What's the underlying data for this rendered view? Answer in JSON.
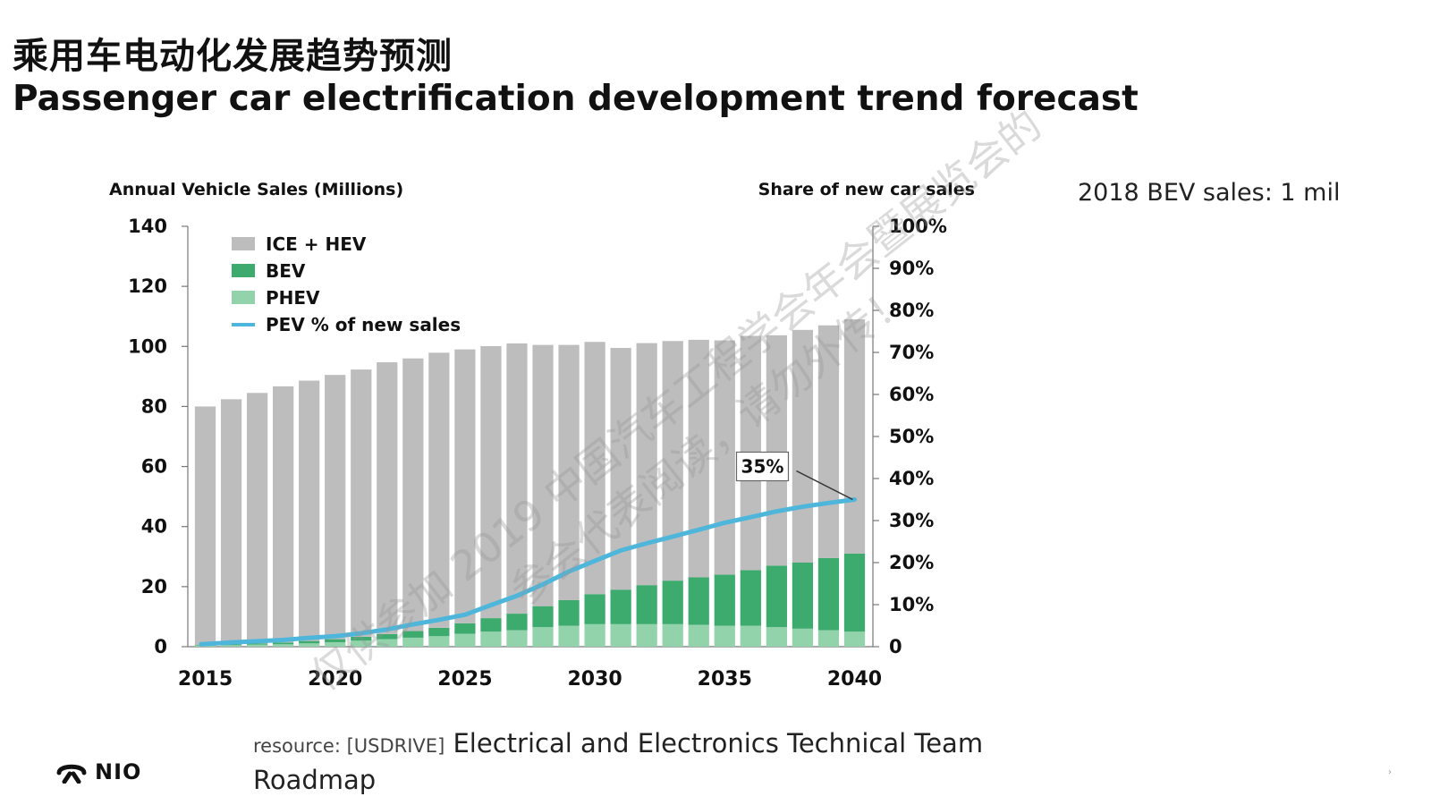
{
  "title_cn": "乘用车电动化发展趋势预测",
  "title_en": "Passenger car electrification development trend forecast",
  "note": "2018 BEV sales: 1 mil",
  "source": {
    "prefix": "resource: [USDRIVE]",
    "text": "Electrical and Electronics Technical Team Roadmap"
  },
  "logo": {
    "text": "NIO",
    "icon": "nio-logo-icon"
  },
  "watermark": {
    "line1": "仅供参加 2019 中国汽车工程学会年会暨展览会的",
    "line2": "参会代表阅读，请勿外传！"
  },
  "page_mark": "›",
  "colors": {
    "ice": "#bdbdbd",
    "bev": "#3daa6e",
    "phev": "#93d3ac",
    "pev_line": "#4fb6db"
  },
  "chart_data": {
    "type": "bar",
    "stacked": true,
    "ylabel_left": "Annual Vehicle Sales (Millions)",
    "ylabel_right": "Share of new car sales",
    "ylim_left": [
      0,
      140
    ],
    "ylim_right": [
      0,
      100
    ],
    "yticks_left": [
      "0",
      "20",
      "40",
      "60",
      "80",
      "100",
      "120",
      "140"
    ],
    "yticks_right": [
      "0",
      "10%",
      "20%",
      "30%",
      "40%",
      "50%",
      "60%",
      "70%",
      "80%",
      "90%",
      "100%"
    ],
    "xticks": [
      "2015",
      "2020",
      "2025",
      "2030",
      "2035",
      "2040"
    ],
    "legend_position": "top-left",
    "x": [
      2015,
      2016,
      2017,
      2018,
      2019,
      2020,
      2021,
      2022,
      2023,
      2024,
      2025,
      2026,
      2027,
      2028,
      2029,
      2030,
      2031,
      2032,
      2033,
      2034,
      2035,
      2036,
      2037,
      2038,
      2039,
      2040
    ],
    "series": [
      {
        "name": "ICE + HEV",
        "kind": "bar",
        "values": [
          79.5,
          81.6,
          83.4,
          85.3,
          86.7,
          88.0,
          89.0,
          90.5,
          90.8,
          91.6,
          91.2,
          90.6,
          90.0,
          87.0,
          85.0,
          84.0,
          80.5,
          80.6,
          79.8,
          79.1,
          78.0,
          78.0,
          76.7,
          77.5,
          77.5,
          78.0
        ]
      },
      {
        "name": "BEV",
        "kind": "bar",
        "values": [
          0.2,
          0.3,
          0.4,
          0.6,
          0.8,
          1.0,
          1.3,
          1.7,
          2.2,
          2.8,
          3.5,
          4.5,
          5.5,
          7.0,
          8.5,
          10.0,
          11.5,
          13.0,
          14.5,
          15.8,
          17.0,
          18.5,
          20.5,
          22.0,
          24.0,
          26.0
        ]
      },
      {
        "name": "PHEV",
        "kind": "bar",
        "values": [
          0.3,
          0.5,
          0.7,
          0.8,
          1.1,
          1.5,
          2.0,
          2.5,
          3.0,
          3.5,
          4.3,
          5.0,
          5.5,
          6.5,
          7.0,
          7.5,
          7.5,
          7.5,
          7.5,
          7.3,
          7.0,
          7.0,
          6.5,
          6.0,
          5.5,
          5.0
        ]
      },
      {
        "name": "PEV % of new sales",
        "kind": "line",
        "axis": "right",
        "values": [
          0.6,
          1.0,
          1.3,
          1.6,
          2.1,
          2.5,
          3.2,
          4.1,
          5.3,
          6.4,
          7.6,
          9.9,
          12.1,
          14.8,
          17.9,
          20.4,
          22.9,
          24.6,
          26.2,
          27.8,
          29.5,
          30.8,
          32.2,
          33.3,
          34.2,
          35.0
        ]
      }
    ],
    "annotations": [
      {
        "x": 2040,
        "series": "PEV % of new sales",
        "text": "35%"
      }
    ]
  }
}
